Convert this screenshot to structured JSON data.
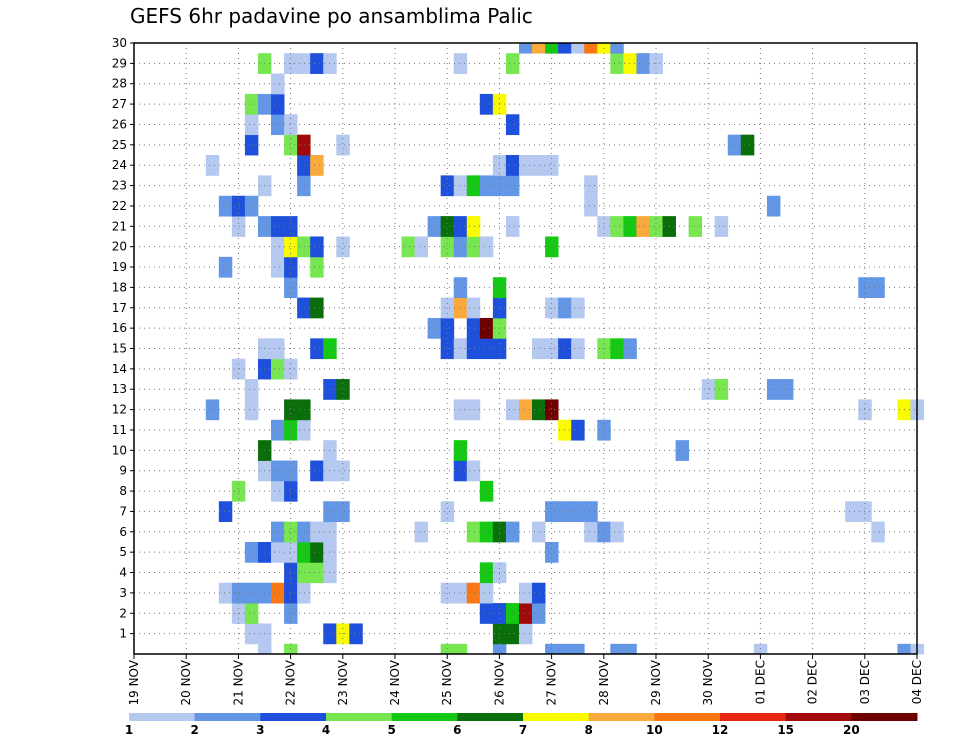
{
  "chart_data": {
    "type": "heatmap",
    "title": "GEFS 6hr padavine po ansamblima Palic",
    "xlabel": "",
    "ylabel": "",
    "x_ticks": [
      "19 NOV",
      "20 NOV",
      "21 NOV",
      "22 NOV",
      "23 NOV",
      "24 NOV",
      "25 NOV",
      "26 NOV",
      "27 NOV",
      "28 NOV",
      "29 NOV",
      "30 NOV",
      "01 DEC",
      "02 DEC",
      "03 DEC",
      "04 DEC"
    ],
    "y_ticks": [
      "1",
      "2",
      "3",
      "4",
      "5",
      "6",
      "7",
      "8",
      "9",
      "10",
      "11",
      "12",
      "13",
      "14",
      "15",
      "16",
      "17",
      "18",
      "19",
      "20",
      "21",
      "22",
      "23",
      "24",
      "25",
      "26",
      "27",
      "28",
      "29",
      "30"
    ],
    "xlim": [
      0,
      60
    ],
    "ylim": [
      0,
      30
    ],
    "x_unit": "6-hour step from 19 NOV 00Z",
    "grid": true,
    "legend": {
      "placement": "bottom",
      "labels": [
        "1",
        "2",
        "3",
        "4",
        "5",
        "6",
        "7",
        "8",
        "10",
        "12",
        "15",
        "20"
      ],
      "colors": [
        "#b4c8f0",
        "#6496e6",
        "#1e50dc",
        "#78e650",
        "#14c814",
        "#0a6e0a",
        "#fafa00",
        "#faaa3c",
        "#fa7814",
        "#e62814",
        "#a00a0a",
        "#6e0000"
      ]
    },
    "cells": [
      [
        10,
        0,
        0
      ],
      [
        12,
        0,
        3
      ],
      [
        24,
        0,
        3
      ],
      [
        25,
        0,
        3
      ],
      [
        28,
        0,
        1
      ],
      [
        32,
        0,
        1
      ],
      [
        33,
        0,
        1
      ],
      [
        34,
        0,
        1
      ],
      [
        37,
        0,
        1
      ],
      [
        38,
        0,
        1
      ],
      [
        48,
        0,
        0
      ],
      [
        59,
        0,
        1
      ],
      [
        60,
        0,
        0
      ],
      [
        9,
        1,
        0
      ],
      [
        10,
        1,
        0
      ],
      [
        15,
        1,
        2
      ],
      [
        16,
        1,
        6
      ],
      [
        17,
        1,
        2
      ],
      [
        28,
        1,
        5
      ],
      [
        29,
        1,
        5
      ],
      [
        30,
        1,
        0
      ],
      [
        8,
        2,
        0
      ],
      [
        9,
        2,
        3
      ],
      [
        12,
        2,
        1
      ],
      [
        27,
        2,
        2
      ],
      [
        28,
        2,
        2
      ],
      [
        29,
        2,
        4
      ],
      [
        30,
        2,
        10
      ],
      [
        31,
        2,
        1
      ],
      [
        7,
        3,
        0
      ],
      [
        8,
        3,
        1
      ],
      [
        9,
        3,
        1
      ],
      [
        10,
        3,
        1
      ],
      [
        11,
        3,
        8
      ],
      [
        12,
        3,
        2
      ],
      [
        13,
        3,
        0
      ],
      [
        24,
        3,
        0
      ],
      [
        25,
        3,
        0
      ],
      [
        26,
        3,
        8
      ],
      [
        27,
        3,
        0
      ],
      [
        30,
        3,
        0
      ],
      [
        31,
        3,
        2
      ],
      [
        12,
        4,
        2
      ],
      [
        13,
        4,
        3
      ],
      [
        14,
        4,
        3
      ],
      [
        15,
        4,
        0
      ],
      [
        27,
        4,
        4
      ],
      [
        28,
        4,
        0
      ],
      [
        9,
        5,
        1
      ],
      [
        10,
        5,
        2
      ],
      [
        11,
        5,
        0
      ],
      [
        12,
        5,
        0
      ],
      [
        13,
        5,
        4
      ],
      [
        14,
        5,
        5
      ],
      [
        15,
        5,
        0
      ],
      [
        32,
        5,
        1
      ],
      [
        11,
        6,
        1
      ],
      [
        12,
        6,
        3
      ],
      [
        13,
        6,
        1
      ],
      [
        14,
        6,
        0
      ],
      [
        15,
        6,
        0
      ],
      [
        22,
        6,
        0
      ],
      [
        26,
        6,
        3
      ],
      [
        27,
        6,
        4
      ],
      [
        28,
        6,
        5
      ],
      [
        29,
        6,
        1
      ],
      [
        31,
        6,
        0
      ],
      [
        35,
        6,
        0
      ],
      [
        36,
        6,
        1
      ],
      [
        37,
        6,
        0
      ],
      [
        57,
        6,
        0
      ],
      [
        7,
        7,
        2
      ],
      [
        15,
        7,
        1
      ],
      [
        16,
        7,
        1
      ],
      [
        24,
        7,
        0
      ],
      [
        32,
        7,
        1
      ],
      [
        33,
        7,
        1
      ],
      [
        34,
        7,
        1
      ],
      [
        35,
        7,
        1
      ],
      [
        55,
        7,
        0
      ],
      [
        56,
        7,
        0
      ],
      [
        8,
        8,
        3
      ],
      [
        11,
        8,
        0
      ],
      [
        12,
        8,
        2
      ],
      [
        27,
        8,
        4
      ],
      [
        10,
        9,
        0
      ],
      [
        11,
        9,
        1
      ],
      [
        12,
        9,
        1
      ],
      [
        14,
        9,
        2
      ],
      [
        15,
        9,
        0
      ],
      [
        16,
        9,
        0
      ],
      [
        25,
        9,
        2
      ],
      [
        26,
        9,
        0
      ],
      [
        10,
        10,
        5
      ],
      [
        15,
        10,
        0
      ],
      [
        25,
        10,
        4
      ],
      [
        42,
        10,
        1
      ],
      [
        11,
        11,
        1
      ],
      [
        12,
        11,
        4
      ],
      [
        13,
        11,
        0
      ],
      [
        33,
        11,
        6
      ],
      [
        34,
        11,
        2
      ],
      [
        36,
        11,
        1
      ],
      [
        6,
        12,
        1
      ],
      [
        9,
        12,
        0
      ],
      [
        12,
        12,
        5
      ],
      [
        13,
        12,
        5
      ],
      [
        25,
        12,
        0
      ],
      [
        26,
        12,
        0
      ],
      [
        29,
        12,
        0
      ],
      [
        30,
        12,
        7
      ],
      [
        31,
        12,
        5
      ],
      [
        32,
        12,
        11
      ],
      [
        56,
        12,
        0
      ],
      [
        59,
        12,
        6
      ],
      [
        60,
        12,
        0
      ],
      [
        9,
        13,
        0
      ],
      [
        15,
        13,
        2
      ],
      [
        16,
        13,
        5
      ],
      [
        44,
        13,
        0
      ],
      [
        45,
        13,
        3
      ],
      [
        49,
        13,
        1
      ],
      [
        50,
        13,
        1
      ],
      [
        8,
        14,
        0
      ],
      [
        10,
        14,
        2
      ],
      [
        11,
        14,
        3
      ],
      [
        12,
        14,
        0
      ],
      [
        10,
        15,
        0
      ],
      [
        11,
        15,
        0
      ],
      [
        14,
        15,
        2
      ],
      [
        15,
        15,
        4
      ],
      [
        24,
        15,
        2
      ],
      [
        25,
        15,
        0
      ],
      [
        26,
        15,
        2
      ],
      [
        27,
        15,
        2
      ],
      [
        28,
        15,
        2
      ],
      [
        31,
        15,
        0
      ],
      [
        32,
        15,
        0
      ],
      [
        33,
        15,
        2
      ],
      [
        34,
        15,
        0
      ],
      [
        36,
        15,
        3
      ],
      [
        37,
        15,
        4
      ],
      [
        38,
        15,
        1
      ],
      [
        23,
        16,
        1
      ],
      [
        24,
        16,
        2
      ],
      [
        26,
        16,
        2
      ],
      [
        27,
        16,
        11
      ],
      [
        28,
        16,
        3
      ],
      [
        13,
        17,
        2
      ],
      [
        14,
        17,
        5
      ],
      [
        24,
        17,
        0
      ],
      [
        25,
        17,
        7
      ],
      [
        26,
        17,
        0
      ],
      [
        28,
        17,
        2
      ],
      [
        32,
        17,
        0
      ],
      [
        33,
        17,
        1
      ],
      [
        34,
        17,
        0
      ],
      [
        12,
        18,
        1
      ],
      [
        25,
        18,
        1
      ],
      [
        28,
        18,
        4
      ],
      [
        56,
        18,
        1
      ],
      [
        57,
        18,
        1
      ],
      [
        7,
        19,
        1
      ],
      [
        11,
        19,
        0
      ],
      [
        12,
        19,
        2
      ],
      [
        14,
        19,
        3
      ],
      [
        11,
        20,
        0
      ],
      [
        12,
        20,
        6
      ],
      [
        13,
        20,
        3
      ],
      [
        14,
        20,
        2
      ],
      [
        16,
        20,
        0
      ],
      [
        21,
        20,
        3
      ],
      [
        22,
        20,
        0
      ],
      [
        24,
        20,
        3
      ],
      [
        25,
        20,
        1
      ],
      [
        26,
        20,
        3
      ],
      [
        27,
        20,
        0
      ],
      [
        32,
        20,
        4
      ],
      [
        8,
        21,
        0
      ],
      [
        10,
        21,
        1
      ],
      [
        11,
        21,
        2
      ],
      [
        12,
        21,
        2
      ],
      [
        23,
        21,
        1
      ],
      [
        24,
        21,
        5
      ],
      [
        25,
        21,
        2
      ],
      [
        26,
        21,
        6
      ],
      [
        29,
        21,
        0
      ],
      [
        36,
        21,
        0
      ],
      [
        37,
        21,
        3
      ],
      [
        38,
        21,
        4
      ],
      [
        39,
        21,
        7
      ],
      [
        40,
        21,
        3
      ],
      [
        41,
        21,
        5
      ],
      [
        43,
        21,
        3
      ],
      [
        45,
        21,
        0
      ],
      [
        7,
        22,
        1
      ],
      [
        8,
        22,
        2
      ],
      [
        9,
        22,
        1
      ],
      [
        35,
        22,
        0
      ],
      [
        49,
        22,
        1
      ],
      [
        10,
        23,
        0
      ],
      [
        13,
        23,
        1
      ],
      [
        24,
        23,
        2
      ],
      [
        25,
        23,
        0
      ],
      [
        26,
        23,
        4
      ],
      [
        27,
        23,
        1
      ],
      [
        28,
        23,
        1
      ],
      [
        29,
        23,
        1
      ],
      [
        35,
        23,
        0
      ],
      [
        6,
        24,
        0
      ],
      [
        13,
        24,
        2
      ],
      [
        14,
        24,
        7
      ],
      [
        28,
        24,
        0
      ],
      [
        29,
        24,
        2
      ],
      [
        30,
        24,
        0
      ],
      [
        31,
        24,
        0
      ],
      [
        32,
        24,
        0
      ],
      [
        9,
        25,
        2
      ],
      [
        12,
        25,
        3
      ],
      [
        13,
        25,
        10
      ],
      [
        16,
        25,
        0
      ],
      [
        46,
        25,
        1
      ],
      [
        47,
        25,
        5
      ],
      [
        9,
        26,
        0
      ],
      [
        11,
        26,
        1
      ],
      [
        12,
        26,
        0
      ],
      [
        29,
        26,
        2
      ],
      [
        9,
        27,
        3
      ],
      [
        10,
        27,
        1
      ],
      [
        11,
        27,
        2
      ],
      [
        27,
        27,
        2
      ],
      [
        28,
        27,
        6
      ],
      [
        11,
        28,
        0
      ],
      [
        10,
        29,
        3
      ],
      [
        12,
        29,
        0
      ],
      [
        13,
        29,
        0
      ],
      [
        14,
        29,
        2
      ],
      [
        15,
        29,
        0
      ],
      [
        25,
        29,
        0
      ],
      [
        29,
        29,
        3
      ],
      [
        37,
        29,
        3
      ],
      [
        38,
        29,
        6
      ],
      [
        39,
        29,
        1
      ],
      [
        40,
        29,
        0
      ],
      [
        30,
        30,
        1
      ],
      [
        31,
        30,
        7
      ],
      [
        32,
        30,
        4
      ],
      [
        33,
        30,
        2
      ],
      [
        34,
        30,
        0
      ],
      [
        35,
        30,
        8
      ],
      [
        36,
        30,
        6
      ],
      [
        37,
        30,
        1
      ]
    ]
  }
}
